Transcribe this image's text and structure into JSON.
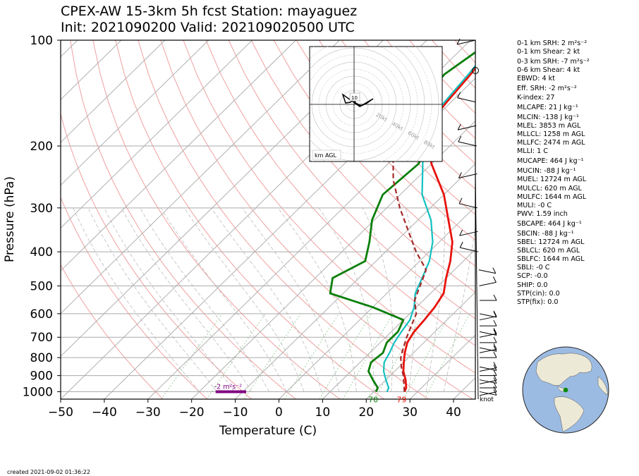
{
  "title": {
    "line1": "CPEX-AW 15-3km  5h fcst  Station: mayaguez",
    "line2": "Init: 2021090200  Valid: 202109020500 UTC"
  },
  "colors": {
    "temperature": "#e8120c",
    "dewpoint": "#0a7f0a",
    "wetbulb": "#12c0c0",
    "parcel": "#a52a2a",
    "srh_bar": "#800080"
  },
  "chart_data": {
    "type": "line",
    "subtype": "skew-T log-p",
    "xlabel": "Temperature (C)",
    "ylabel": "Pressure (hPa)",
    "xlim": [
      -50,
      45
    ],
    "ylim": [
      1050,
      100
    ],
    "y_scale": "log",
    "xticks": [
      "−50",
      "−40",
      "−30",
      "−20",
      "−10",
      "0",
      "10",
      "20",
      "30",
      "40"
    ],
    "yticks": [
      "100",
      "200",
      "300",
      "400",
      "500",
      "600",
      "700",
      "800",
      "900",
      "1000"
    ],
    "grid": true,
    "series": [
      {
        "key": "temperature",
        "x": [
          27,
          26.5,
          24.5,
          22,
          20,
          18,
          16.2,
          15.2,
          14.8,
          14.2,
          13,
          10,
          7,
          3,
          -3,
          -10,
          -20,
          -27,
          -30,
          -31,
          -32,
          -34
        ],
        "y": [
          1000,
          975,
          925,
          875,
          825,
          775,
          725,
          675,
          625,
          575,
          525,
          475,
          425,
          375,
          325,
          275,
          225,
          190,
          175,
          150,
          125,
          100
        ]
      },
      {
        "key": "wetbulb",
        "x": [
          23,
          22.5,
          20,
          17.5,
          15.5,
          14.5,
          13.2,
          12.3,
          11.5,
          9.5,
          6.5,
          4.5,
          2.2,
          -1.5,
          -7,
          -15,
          -22,
          -28,
          -30,
          -31.5,
          -32.5,
          -34
        ],
        "y": [
          1000,
          975,
          925,
          875,
          825,
          775,
          725,
          675,
          625,
          575,
          525,
          475,
          425,
          375,
          325,
          275,
          225,
          190,
          175,
          150,
          125,
          100
        ]
      },
      {
        "key": "dewpoint",
        "x": [
          20.5,
          20,
          17,
          14,
          12.5,
          13,
          11.5,
          11.5,
          10,
          0,
          -13,
          -16,
          -12.5,
          -16,
          -20.5,
          -24,
          -23,
          -25.5,
          -30,
          -37,
          -38,
          -35
        ],
        "y": [
          1000,
          975,
          925,
          875,
          825,
          775,
          725,
          675,
          625,
          575,
          525,
          475,
          425,
          375,
          325,
          275,
          225,
          190,
          175,
          150,
          125,
          100
        ]
      },
      {
        "key": "parcel",
        "x": [
          27,
          23,
          20.5,
          18.2,
          16.5,
          14.8,
          11.5,
          8,
          3.5,
          -3,
          -9.5,
          -17,
          -25,
          -33,
          -43
        ],
        "y": [
          1000,
          900,
          850,
          800,
          750,
          700,
          600,
          550,
          450,
          400,
          350,
          300,
          250,
          200,
          150
        ]
      }
    ],
    "surface_labels": [
      {
        "key": "dewpoint",
        "text": "70"
      },
      {
        "key": "temperature",
        "text": "79"
      }
    ],
    "srh_bar": {
      "text": "-2 m²s⁻²",
      "x_range": [
        -14.5,
        -7.5
      ],
      "y": 1000
    },
    "wind_barb_unit": "knot",
    "hodograph": {
      "corner_label": "km AGL",
      "ring_labels": [
        "20kt",
        "40kt",
        "60kt",
        "80kt"
      ],
      "point_labels": [
        "10"
      ]
    }
  },
  "indices": [
    {
      "label": "0-1 km SRH: 2 m²s⁻²"
    },
    {
      "label": "0-1 km Shear: 2 kt"
    },
    {
      "label": "0-3 km SRH: -7 m²s⁻²",
      "gap": true
    },
    {
      "label": "0-6 km Shear: 4 kt"
    },
    {
      "label": "EBWD: 4 kt"
    },
    {
      "label": "Eff. SRH: -2 m²s⁻²",
      "gap": true
    },
    {
      "label": "K-index: 27"
    },
    {
      "label": "MLCAPE: 21 J kg⁻¹",
      "gap": true
    },
    {
      "label": "MLCIN: -138 J kg⁻¹",
      "gap": true
    },
    {
      "label": "MLEL: 3853 m AGL"
    },
    {
      "label": "MLLCL: 1258 m AGL"
    },
    {
      "label": "MLLFC: 2474 m AGL"
    },
    {
      "label": "MLLI: 1 C"
    },
    {
      "label": "MUCAPE: 464 J kg⁻¹",
      "gap": true
    },
    {
      "label": "MUCIN: -88 J kg⁻¹",
      "gap": true
    },
    {
      "label": "MUEL: 12724 m AGL"
    },
    {
      "label": "MULCL: 620 m AGL"
    },
    {
      "label": "MULFC: 1644 m AGL"
    },
    {
      "label": "MULI: -0 C"
    },
    {
      "label": "PWV: 1.59 inch"
    },
    {
      "label": "SBCAPE: 464 J kg⁻¹",
      "gap": true
    },
    {
      "label": "SBCIN: -88 J kg⁻¹",
      "gap": true
    },
    {
      "label": "SBEL: 12724 m AGL"
    },
    {
      "label": "SBLCL: 620 m AGL"
    },
    {
      "label": "SBLFC: 1644 m AGL"
    },
    {
      "label": "SBLI: -0 C"
    },
    {
      "label": "SCP: -0.0"
    },
    {
      "label": "SHIP: 0.0"
    },
    {
      "label": "STP(cin): 0.0"
    },
    {
      "label": "STP(fix): 0.0"
    }
  ],
  "footer": {
    "created": "created 2021-09-02 01:36:22"
  }
}
